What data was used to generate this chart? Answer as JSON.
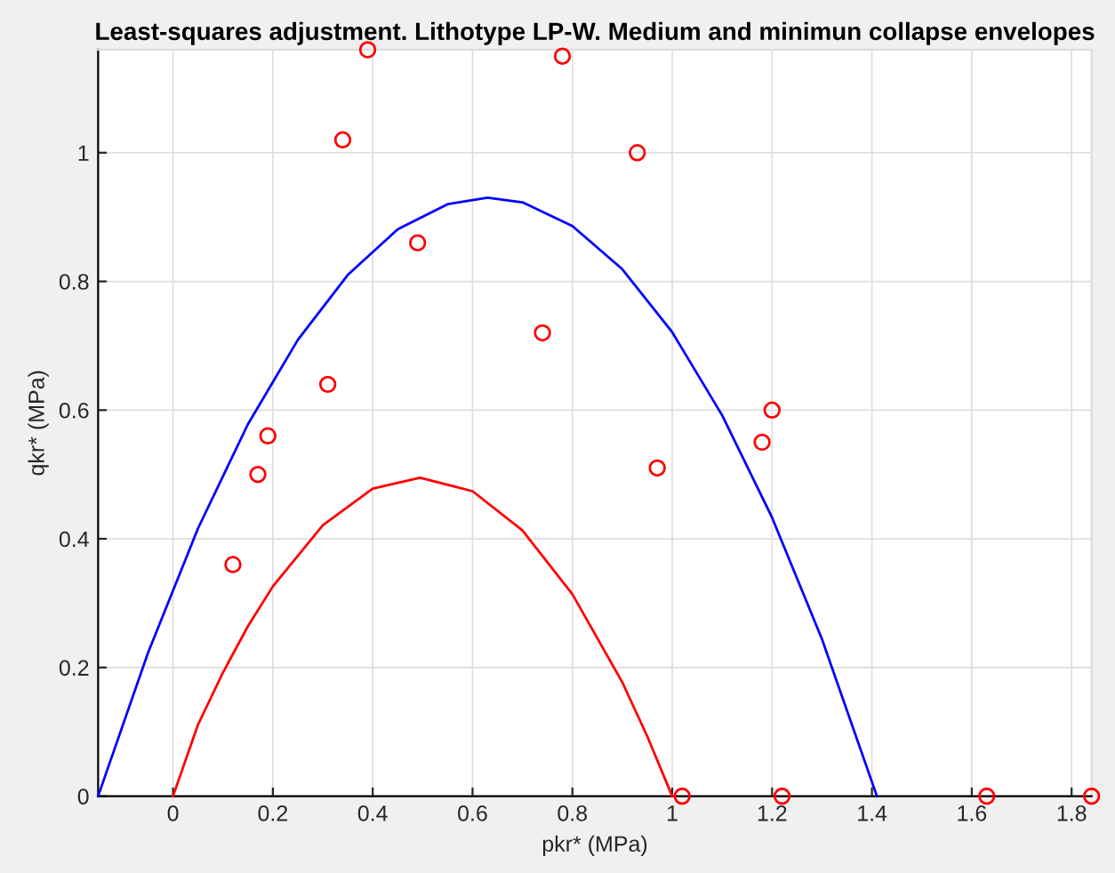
{
  "chart_data": {
    "type": "scatter",
    "title": "Least-squares adjustment. Lithotype LP-W. Medium and minimun collapse envelopes",
    "xlabel": "pkr* (MPa)",
    "ylabel": "qkr* (MPa)",
    "xlim": [
      -0.15,
      1.84
    ],
    "ylim": [
      0,
      1.16
    ],
    "xticks": [
      0,
      0.2,
      0.4,
      0.6,
      0.8,
      1,
      1.2,
      1.4,
      1.6,
      1.8
    ],
    "yticks": [
      0,
      0.2,
      0.4,
      0.6,
      0.8,
      1
    ],
    "grid": true,
    "legend": false,
    "series": [
      {
        "type": "line",
        "color": "#0000ff",
        "marker": "none",
        "line_style": "solid",
        "x": [
          -0.15,
          -0.05,
          0.05,
          0.15,
          0.25,
          0.35,
          0.45,
          0.55,
          0.63,
          0.7,
          0.8,
          0.9,
          1.0,
          1.1,
          1.2,
          1.3,
          1.41
        ],
        "values": [
          0,
          0.223,
          0.416,
          0.578,
          0.709,
          0.81,
          0.881,
          0.92,
          0.93,
          0.923,
          0.886,
          0.819,
          0.721,
          0.592,
          0.433,
          0.244,
          0
        ]
      },
      {
        "type": "line",
        "color": "#ff0000",
        "marker": "none",
        "line_style": "solid",
        "x": [
          0,
          0.05,
          0.1,
          0.15,
          0.2,
          0.3,
          0.4,
          0.495,
          0.6,
          0.7,
          0.8,
          0.9,
          0.95,
          1.0
        ],
        "values": [
          0,
          0.111,
          0.192,
          0.264,
          0.326,
          0.421,
          0.478,
          0.495,
          0.474,
          0.413,
          0.314,
          0.177,
          0.093,
          0
        ]
      },
      {
        "color": "#ff0000",
        "marker": "circle",
        "x": [
          0.12,
          0.17,
          0.19,
          0.31,
          0.34,
          0.39,
          0.49,
          0.74,
          0.78,
          0.93,
          0.97,
          1.18,
          1.2,
          1.02,
          1.22,
          1.63,
          1.84
        ],
        "values": [
          0.36,
          0.5,
          0.56,
          0.64,
          1.02,
          1.16,
          0.86,
          0.72,
          1.15,
          1.0,
          0.51,
          0.55,
          0.6,
          0,
          0,
          0,
          0
        ]
      }
    ]
  }
}
